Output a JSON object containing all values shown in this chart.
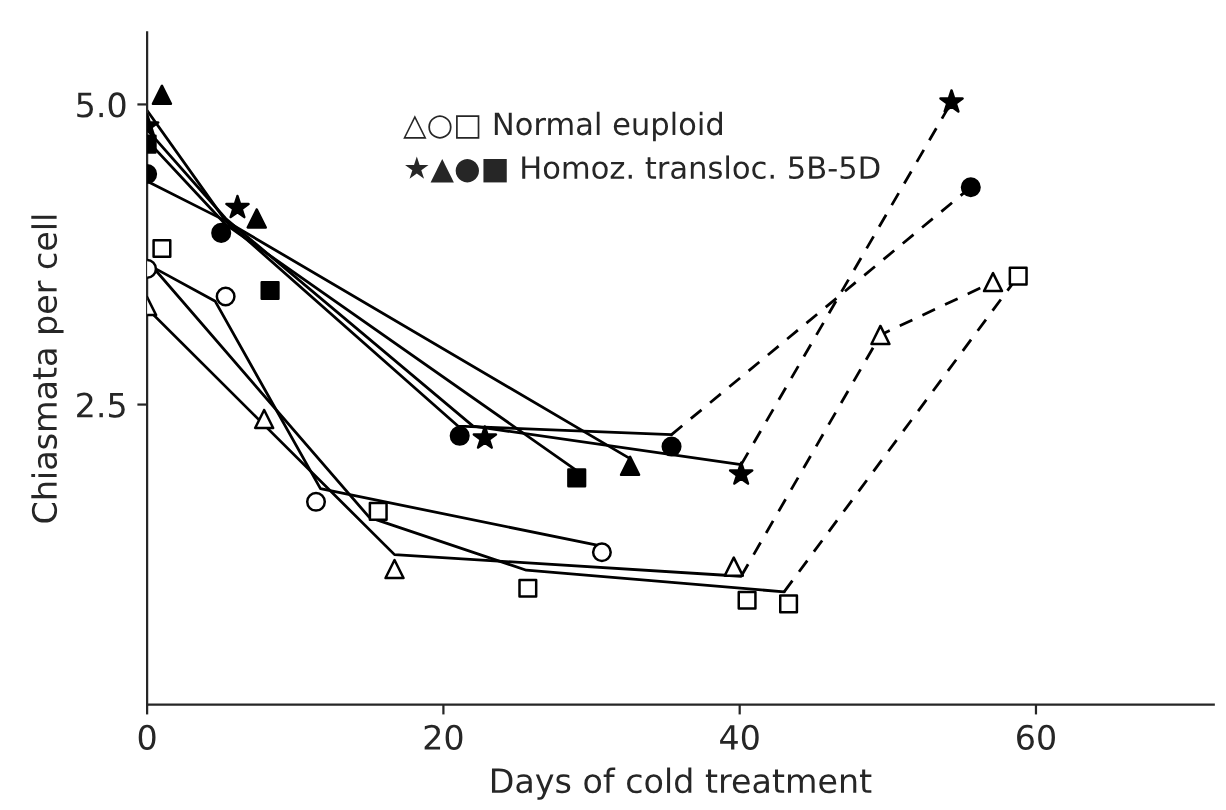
{
  "chart_data": {
    "type": "line",
    "xlabel": "Days of cold treatment",
    "ylabel": "Chiasmata per cell",
    "xlim": [
      0,
      72
    ],
    "xticks": [
      0,
      20,
      40,
      60
    ],
    "ylim": [
      0,
      5.6
    ],
    "yticks": [
      {
        "value": 2.5,
        "label": "2.5"
      },
      {
        "value": 5.0,
        "label": "5.0"
      }
    ],
    "grid": false,
    "annotations": [
      "△○□ Normal euploid",
      "★▲●■ Homoz. transloc. 5B-5D"
    ],
    "series": [
      {
        "line_style": "solid",
        "color": "#000000",
        "x": [
          0,
          5.3,
          22,
          40.1
        ],
        "values": [
          4.79,
          4.05,
          2.32,
          2.0
        ]
      },
      {
        "line_style": "solid",
        "color": "#000000",
        "x": [
          0,
          5.3,
          21,
          35.4
        ],
        "values": [
          4.36,
          4.03,
          2.32,
          2.25
        ]
      },
      {
        "line_style": "solid",
        "color": "#000000",
        "x": [
          0,
          5.3,
          32.6
        ],
        "values": [
          4.95,
          4.03,
          2.05
        ]
      },
      {
        "line_style": "solid",
        "color": "#000000",
        "x": [
          0,
          5.3,
          29
        ],
        "values": [
          4.7,
          4.0,
          1.95
        ]
      },
      {
        "line_style": "solid",
        "color": "#000000",
        "x": [
          0,
          4.6,
          11.7,
          30.7
        ],
        "values": [
          3.67,
          3.36,
          1.8,
          1.32
        ]
      },
      {
        "line_style": "solid",
        "color": "#000000",
        "x": [
          0,
          16.7,
          40.1
        ],
        "values": [
          3.3,
          1.25,
          1.07
        ]
      },
      {
        "line_style": "solid",
        "color": "#000000",
        "x": [
          0,
          15,
          25.6,
          43
        ],
        "values": [
          3.7,
          1.56,
          1.12,
          0.94
        ]
      },
      {
        "line_style": "dashed",
        "color": "#000000",
        "x": [
          40.1,
          54.3
        ],
        "values": [
          2.0,
          5.02
        ]
      },
      {
        "line_style": "dashed",
        "color": "#000000",
        "x": [
          35.4,
          55.6
        ],
        "values": [
          2.25,
          4.31
        ]
      },
      {
        "line_style": "dashed",
        "color": "#000000",
        "x": [
          40.1,
          49.5,
          57.1
        ],
        "values": [
          1.07,
          3.08,
          3.52
        ]
      },
      {
        "line_style": "dashed",
        "color": "#000000",
        "x": [
          43,
          58.8
        ],
        "values": [
          0.94,
          3.57
        ]
      },
      {
        "type": "scatter",
        "marker": "star",
        "color": "#000000",
        "x": [
          0,
          6.1,
          22.8,
          40.1,
          54.3
        ],
        "values": [
          4.82,
          4.14,
          2.22,
          1.92,
          5.02
        ]
      },
      {
        "type": "scatter",
        "marker": "triangle",
        "color": "#000000",
        "x": [
          1,
          7.4,
          32.6
        ],
        "values": [
          5.08,
          4.05,
          1.99
        ]
      },
      {
        "type": "scatter",
        "marker": "circle",
        "color": "#000000",
        "x": [
          0,
          5.0,
          21.1,
          35.4,
          55.6
        ],
        "values": [
          4.42,
          3.93,
          2.24,
          2.15,
          4.31
        ]
      },
      {
        "type": "scatter",
        "marker": "square",
        "color": "#000000",
        "x": [
          0,
          8.3,
          29.0
        ],
        "values": [
          4.67,
          3.45,
          1.89
        ]
      },
      {
        "type": "scatter",
        "marker": "triangle",
        "color": "#ffffff",
        "x": [
          0,
          7.9,
          16.7,
          39.6,
          49.5,
          57.1
        ],
        "values": [
          3.32,
          2.38,
          1.13,
          1.15,
          3.08,
          3.52
        ]
      },
      {
        "type": "scatter",
        "marker": "circle",
        "color": "#ffffff",
        "x": [
          0,
          5.3,
          11.4,
          30.7
        ],
        "values": [
          3.63,
          3.4,
          1.69,
          1.27
        ]
      },
      {
        "type": "scatter",
        "marker": "square",
        "color": "#ffffff",
        "x": [
          1,
          15.6,
          25.7,
          40.5,
          43.3,
          58.8
        ],
        "values": [
          3.8,
          1.61,
          0.97,
          0.87,
          0.84,
          3.57
        ]
      }
    ]
  }
}
